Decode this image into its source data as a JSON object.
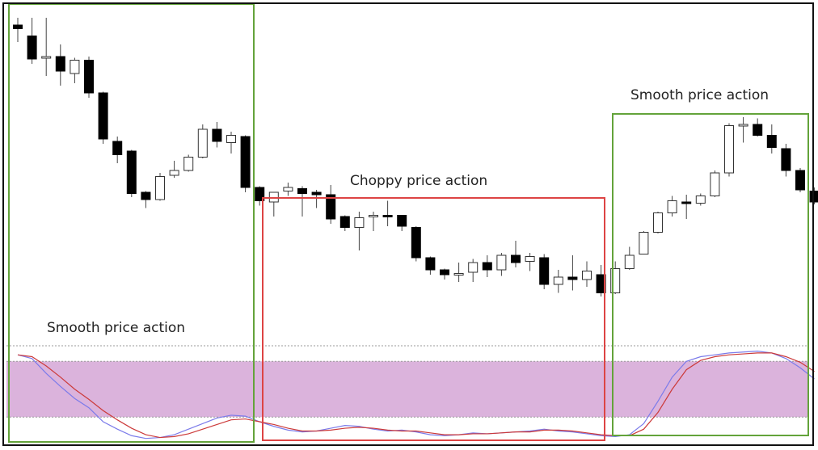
{
  "colors": {
    "frame": "#111111",
    "smooth_box": "#63a33a",
    "choppy_box": "#dd4444",
    "bull_fill": "#ffffff",
    "bear_fill": "#000000",
    "candle_outline": "#333333",
    "wick": "#444444",
    "oscillator_band": "#dbb3dc",
    "oscillator_fast": "#7b7bea",
    "oscillator_slow": "#cc3a3a",
    "dotted_level": "#999999"
  },
  "annotations": {
    "left_label": "Smooth price action",
    "middle_label": "Choppy price action",
    "right_label": "Smooth price action"
  },
  "chart_data": [
    {
      "type": "candlestick",
      "title": "",
      "ylim": [
        0,
        100
      ],
      "candles": [
        {
          "o": 97.0,
          "h": 100.0,
          "l": 90.0,
          "c": 95.5
        },
        {
          "o": 92.5,
          "h": 100.0,
          "l": 81.0,
          "c": 83.0
        },
        {
          "o": 84.0,
          "h": 100.0,
          "l": 76.0,
          "c": 84.0
        },
        {
          "o": 84.0,
          "h": 89.0,
          "l": 72.0,
          "c": 78.0
        },
        {
          "o": 77.0,
          "h": 83.5,
          "l": 73.0,
          "c": 82.5
        },
        {
          "o": 82.5,
          "h": 84.0,
          "l": 67.0,
          "c": 69.0
        },
        {
          "o": 69.0,
          "h": 69.5,
          "l": 48.0,
          "c": 50.0
        },
        {
          "o": 49.0,
          "h": 51.0,
          "l": 40.0,
          "c": 43.5
        },
        {
          "o": 45.0,
          "h": 45.5,
          "l": 26.0,
          "c": 27.5
        },
        {
          "o": 28.0,
          "h": 28.5,
          "l": 21.5,
          "c": 25.0
        },
        {
          "o": 25.0,
          "h": 36.0,
          "l": 24.5,
          "c": 34.5
        },
        {
          "o": 35.0,
          "h": 41.0,
          "l": 34.0,
          "c": 37.0
        },
        {
          "o": 37.0,
          "h": 43.5,
          "l": 36.5,
          "c": 42.5
        },
        {
          "o": 42.5,
          "h": 56.0,
          "l": 42.0,
          "c": 54.0
        },
        {
          "o": 54.0,
          "h": 57.0,
          "l": 46.5,
          "c": 49.0
        },
        {
          "o": 48.5,
          "h": 53.0,
          "l": 44.0,
          "c": 51.5
        },
        {
          "o": 51.0,
          "h": 51.5,
          "l": 28.0,
          "c": 30.0
        },
        {
          "o": 30.0,
          "h": 30.5,
          "l": 22.5,
          "c": 24.5
        },
        {
          "o": 24.0,
          "h": 28.0,
          "l": 18.0,
          "c": 28.0
        },
        {
          "o": 28.5,
          "h": 32.0,
          "l": 26.5,
          "c": 30.0
        },
        {
          "o": 29.5,
          "h": 30.5,
          "l": 18.0,
          "c": 27.5
        },
        {
          "o": 28.0,
          "h": 29.0,
          "l": 21.5,
          "c": 27.0
        },
        {
          "o": 27.0,
          "h": 31.0,
          "l": 15.0,
          "c": 17.0
        },
        {
          "o": 18.0,
          "h": 18.5,
          "l": 12.0,
          "c": 13.5
        },
        {
          "o": 13.5,
          "h": 20.0,
          "l": 4.0,
          "c": 17.5
        },
        {
          "o": 18.0,
          "h": 20.0,
          "l": 12.0,
          "c": 18.5
        },
        {
          "o": 18.5,
          "h": 24.5,
          "l": 14.0,
          "c": 18.0
        },
        {
          "o": 18.5,
          "h": 18.5,
          "l": 12.0,
          "c": 14.0
        },
        {
          "o": 13.5,
          "h": 14.0,
          "l": -0.5,
          "c": 1.0
        },
        {
          "o": 1.0,
          "h": 1.5,
          "l": -6.0,
          "c": -4.0
        },
        {
          "o": -4.0,
          "h": -3.5,
          "l": -8.0,
          "c": -6.0
        },
        {
          "o": -6.0,
          "h": -1.0,
          "l": -9.0,
          "c": -5.5
        },
        {
          "o": -5.0,
          "h": 0.5,
          "l": -9.0,
          "c": -1.0
        },
        {
          "o": -1.0,
          "h": 2.0,
          "l": -7.0,
          "c": -4.0
        },
        {
          "o": -4.0,
          "h": 3.0,
          "l": -6.5,
          "c": 2.0
        },
        {
          "o": 2.0,
          "h": 8.0,
          "l": -3.0,
          "c": -1.0
        },
        {
          "o": -0.5,
          "h": 3.0,
          "l": -4.5,
          "c": 1.5
        },
        {
          "o": 1.0,
          "h": 2.5,
          "l": -12.0,
          "c": -10.0
        },
        {
          "o": -10.0,
          "h": -4.0,
          "l": -13.5,
          "c": -7.0
        },
        {
          "o": -7.0,
          "h": 2.0,
          "l": -12.5,
          "c": -8.0
        },
        {
          "o": -8.0,
          "h": -0.5,
          "l": -11.0,
          "c": -4.5
        },
        {
          "o": -6.0,
          "h": -2.0,
          "l": -15.0,
          "c": -13.5
        },
        {
          "o": -13.5,
          "h": -0.5,
          "l": -14.0,
          "c": -3.5
        },
        {
          "o": -3.5,
          "h": 5.5,
          "l": -4.0,
          "c": 2.0
        },
        {
          "o": 2.5,
          "h": 12.0,
          "l": 2.5,
          "c": 11.5
        },
        {
          "o": 11.5,
          "h": 20.0,
          "l": 11.0,
          "c": 19.5
        },
        {
          "o": 19.5,
          "h": 26.5,
          "l": 18.0,
          "c": 24.5
        },
        {
          "o": 24.0,
          "h": 27.0,
          "l": 17.0,
          "c": 23.5
        },
        {
          "o": 23.5,
          "h": 27.5,
          "l": 22.5,
          "c": 26.5
        },
        {
          "o": 26.5,
          "h": 37.0,
          "l": 26.0,
          "c": 36.0
        },
        {
          "o": 36.0,
          "h": 56.5,
          "l": 34.5,
          "c": 55.5
        },
        {
          "o": 55.5,
          "h": 59.0,
          "l": 48.5,
          "c": 56.0
        },
        {
          "o": 56.0,
          "h": 58.5,
          "l": 51.0,
          "c": 51.5
        },
        {
          "o": 51.5,
          "h": 56.0,
          "l": 44.0,
          "c": 46.5
        },
        {
          "o": 46.0,
          "h": 48.0,
          "l": 34.5,
          "c": 37.0
        },
        {
          "o": 37.0,
          "h": 38.0,
          "l": 28.0,
          "c": 29.0
        },
        {
          "o": 28.5,
          "h": 30.0,
          "l": 23.0,
          "c": 24.0
        }
      ]
    },
    {
      "type": "line",
      "title": "",
      "ylim": [
        0,
        100
      ],
      "band": [
        25,
        85
      ],
      "series": [
        {
          "values": [
            92,
            88,
            72,
            58,
            45,
            35,
            20,
            12,
            5,
            2,
            3,
            6,
            12,
            18,
            24,
            27,
            26,
            20,
            15,
            11,
            9,
            10,
            13,
            16,
            15,
            12,
            10,
            11,
            9,
            6,
            5,
            6,
            8,
            7,
            8,
            9,
            10,
            12,
            10,
            9,
            7,
            5,
            4,
            6,
            18,
            42,
            68,
            85,
            90,
            92,
            94,
            95,
            96,
            94,
            88,
            78,
            66
          ]
        },
        {
          "values": [
            92,
            90,
            80,
            68,
            55,
            44,
            32,
            22,
            13,
            6,
            3,
            4,
            7,
            12,
            17,
            22,
            23,
            20,
            17,
            13,
            10,
            10,
            11,
            13,
            14,
            13,
            11,
            10,
            10,
            8,
            6,
            6,
            7,
            7,
            8,
            9,
            9,
            11,
            11,
            10,
            8,
            6,
            5,
            5,
            12,
            30,
            55,
            76,
            86,
            90,
            92,
            93,
            94,
            94,
            90,
            84,
            74
          ]
        }
      ]
    }
  ]
}
